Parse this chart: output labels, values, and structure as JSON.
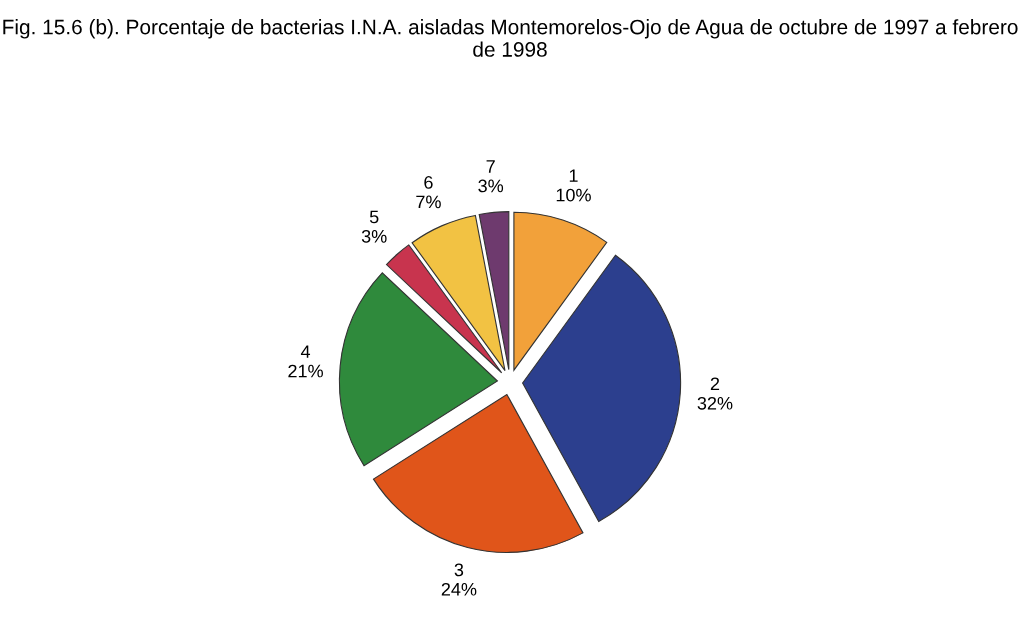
{
  "chart_data": {
    "type": "pie",
    "title": "Fig. 15.6 (b). Porcentaje de bacterias I.N.A. aisladas Montemorelos-Ojo de Agua de octubre de 1997 a febrero de 1998",
    "categories": [
      "1",
      "2",
      "3",
      "4",
      "5",
      "6",
      "7"
    ],
    "values": [
      10,
      32,
      24,
      21,
      3,
      7,
      3
    ],
    "value_labels": [
      "10%",
      "32%",
      "24%",
      "21%",
      "3%",
      "7%",
      "3%"
    ],
    "colors": [
      "#f2a13a",
      "#2c3f8e",
      "#e0551a",
      "#2f8a3c",
      "#c8344e",
      "#f2c243",
      "#6e3a6e"
    ],
    "legend": false
  }
}
